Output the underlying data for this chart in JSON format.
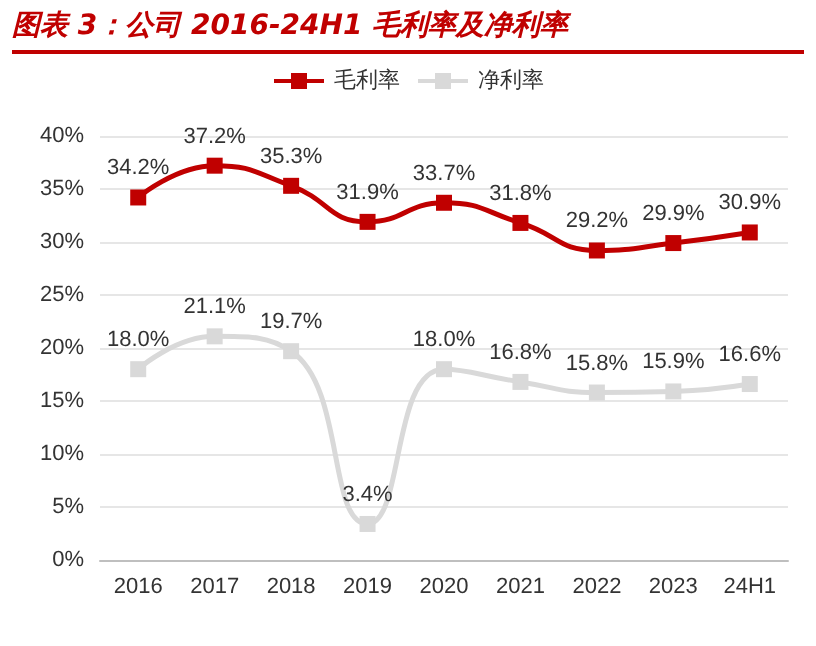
{
  "chart_data": {
    "type": "line",
    "title": "图表 3：公司 2016-24H1 毛利率及净利率",
    "categories": [
      "2016",
      "2017",
      "2018",
      "2019",
      "2020",
      "2021",
      "2022",
      "2023",
      "24H1"
    ],
    "series": [
      {
        "name": "毛利率",
        "color": "#c00000",
        "values": [
          34.2,
          37.2,
          35.3,
          31.9,
          33.7,
          31.8,
          29.2,
          29.9,
          30.9
        ],
        "value_labels": [
          "34.2%",
          "37.2%",
          "35.3%",
          "31.9%",
          "33.7%",
          "31.8%",
          "29.2%",
          "29.9%",
          "30.9%"
        ]
      },
      {
        "name": "净利率",
        "color": "#d9d9d9",
        "values": [
          18.0,
          21.1,
          19.7,
          3.4,
          18.0,
          16.8,
          15.8,
          15.9,
          16.6
        ],
        "value_labels": [
          "18.0%",
          "21.1%",
          "19.7%",
          "3.4%",
          "18.0%",
          "16.8%",
          "15.8%",
          "15.9%",
          "16.6%"
        ]
      }
    ],
    "ylim": [
      0,
      40
    ],
    "yticks": [
      {
        "value": 0,
        "label": "0%"
      },
      {
        "value": 5,
        "label": "5%"
      },
      {
        "value": 10,
        "label": "10%"
      },
      {
        "value": 15,
        "label": "15%"
      },
      {
        "value": 20,
        "label": "20%"
      },
      {
        "value": 25,
        "label": "25%"
      },
      {
        "value": 30,
        "label": "30%"
      },
      {
        "value": 35,
        "label": "35%"
      },
      {
        "value": 40,
        "label": "40%"
      }
    ],
    "grid": "y",
    "legend": "top",
    "marker": "square",
    "line_style": "solid"
  }
}
